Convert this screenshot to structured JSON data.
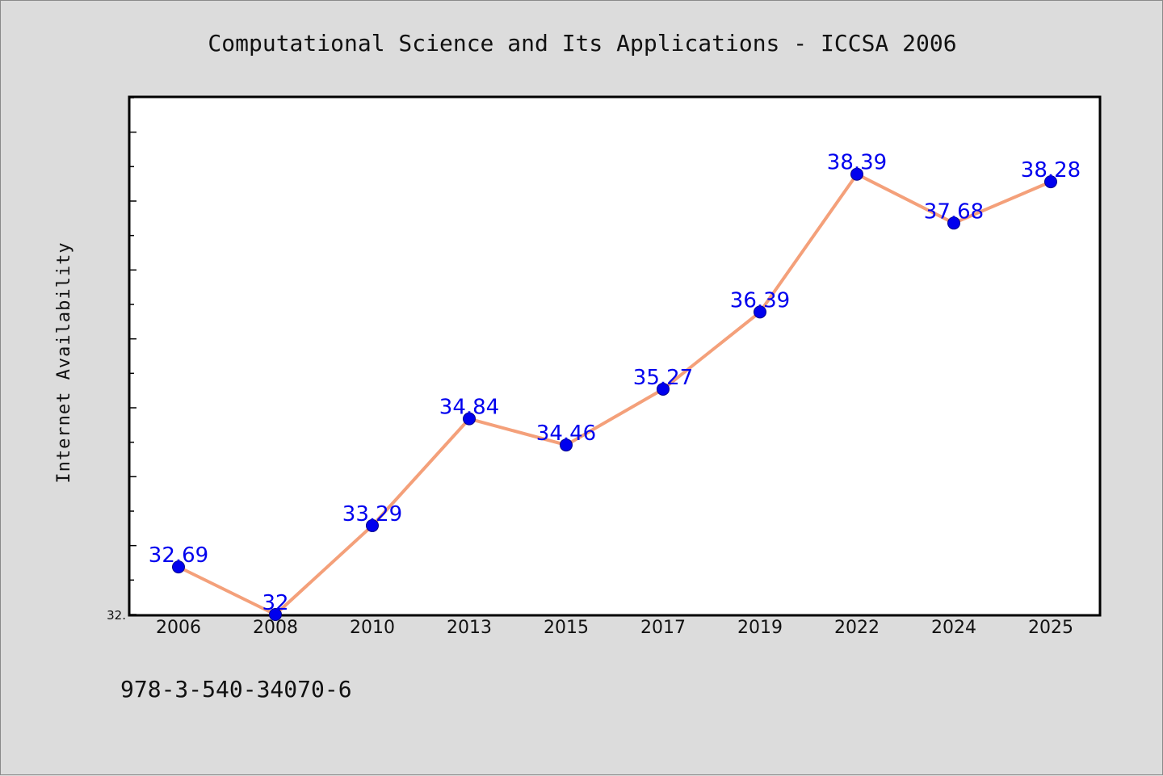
{
  "chart_data": {
    "type": "line",
    "title": "Computational Science and Its Applications - ICCSA 2006",
    "xlabel": "",
    "ylabel": "Internet Availability",
    "categories": [
      "2006",
      "2008",
      "2010",
      "2013",
      "2015",
      "2017",
      "2019",
      "2022",
      "2024",
      "2025"
    ],
    "values": [
      32.69,
      32,
      33.29,
      34.84,
      34.46,
      35.27,
      36.39,
      38.39,
      37.68,
      38.28
    ],
    "data_labels": [
      "32.69",
      "32",
      "33.29",
      "34.84",
      "34.46",
      "35.27",
      "36.39",
      "38.39",
      "37.68",
      "38.28"
    ],
    "ylim": [
      32,
      39.5
    ],
    "y_min_tick_label": "32.",
    "grid": false,
    "line_color": "#f4a07a",
    "marker_color": "#0000ee",
    "label_color": "#0000ee",
    "plot_background": "#ffffff",
    "figure_background": "#dcdcdc"
  },
  "footer": {
    "isbn": "978-3-540-34070-6"
  }
}
